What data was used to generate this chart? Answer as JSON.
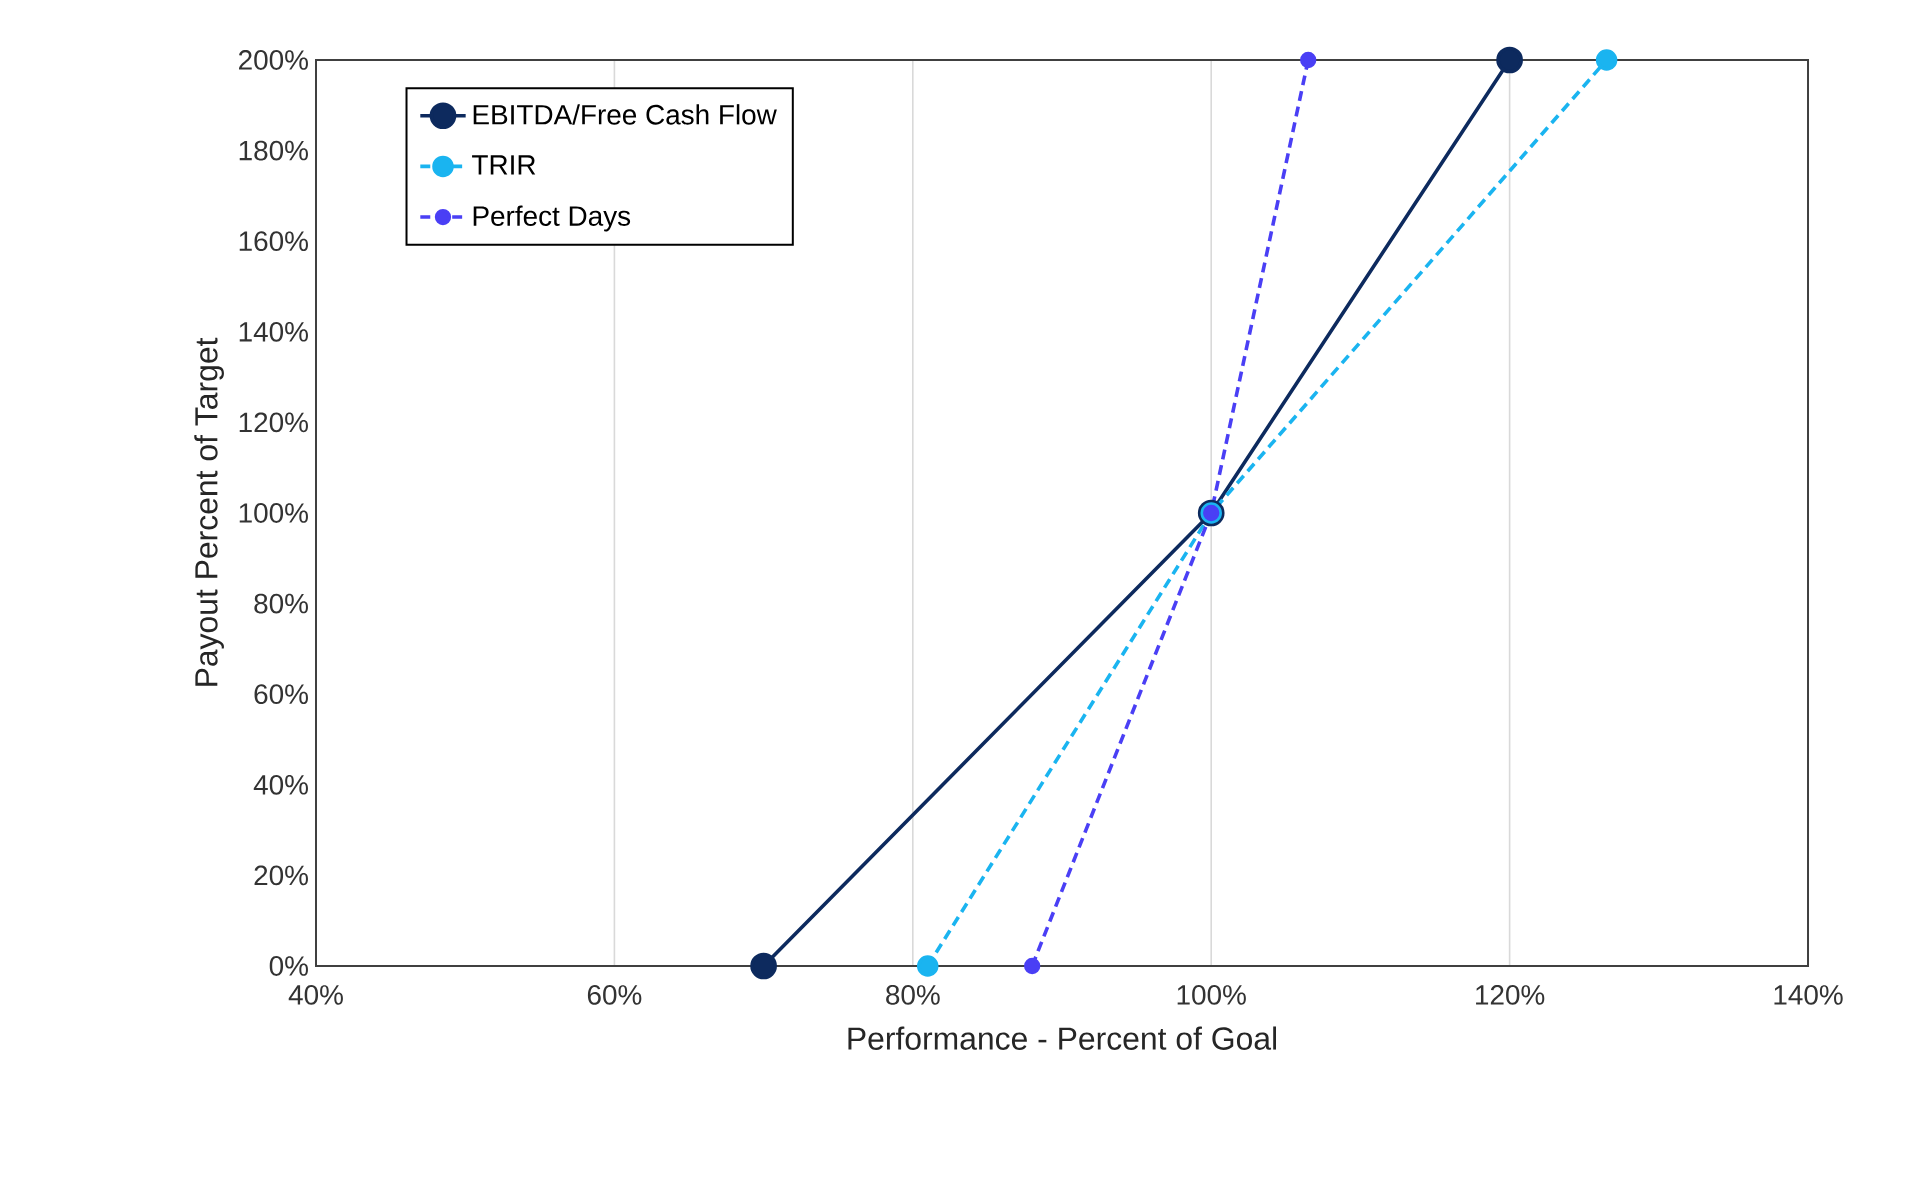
{
  "chart_data": {
    "type": "line",
    "xlabel": "Performance - Percent of Goal",
    "ylabel": "Payout Percent of Target",
    "series": [
      {
        "name": "EBITDA/Free Cash Flow",
        "color": "#0d2a5e",
        "x": [
          70,
          100,
          120
        ],
        "values": [
          0,
          100,
          200
        ],
        "line_style": "solid"
      },
      {
        "name": "TRIR",
        "color": "#1ab4f0",
        "x": [
          81,
          100,
          126.5
        ],
        "values": [
          0,
          100,
          200
        ],
        "line_style": "dashed"
      },
      {
        "name": "Perfect Days",
        "color": "#4a3ff5",
        "x": [
          88,
          100,
          106.5
        ],
        "values": [
          0,
          100,
          200
        ],
        "line_style": "dashed"
      }
    ],
    "xlim": [
      40,
      140
    ],
    "ylim": [
      0,
      200
    ],
    "xticks": [
      {
        "value": 40,
        "label": "40%"
      },
      {
        "value": 60,
        "label": "60%"
      },
      {
        "value": 80,
        "label": "80%"
      },
      {
        "value": 100,
        "label": "100%"
      },
      {
        "value": 120,
        "label": "120%"
      },
      {
        "value": 140,
        "label": "140%"
      }
    ],
    "yticks": [
      {
        "value": 0,
        "label": "0%"
      },
      {
        "value": 20,
        "label": "20%"
      },
      {
        "value": 40,
        "label": "40%"
      },
      {
        "value": 60,
        "label": "60%"
      },
      {
        "value": 80,
        "label": "80%"
      },
      {
        "value": 100,
        "label": "100%"
      },
      {
        "value": 120,
        "label": "120%"
      },
      {
        "value": 140,
        "label": "140%"
      },
      {
        "value": 160,
        "label": "160%"
      },
      {
        "value": 180,
        "label": "180%"
      },
      {
        "value": 200,
        "label": "200%"
      }
    ],
    "grid": "x",
    "legend": "top left",
    "marker": "circle"
  }
}
